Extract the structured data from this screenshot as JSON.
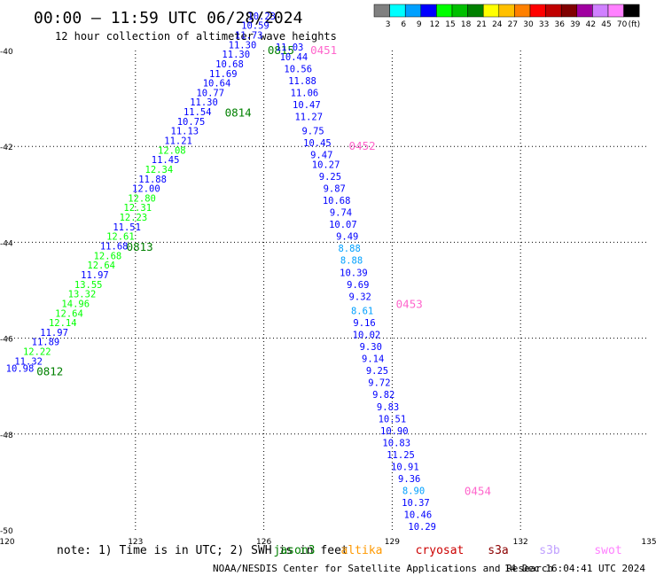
{
  "header": {
    "title": "00:00 – 11:59 UTC 06/28/2024",
    "subtitle": "12 hour collection of altimeter wave heights"
  },
  "legend": {
    "unit": "(ft)",
    "bins": [
      {
        "label": "3",
        "color": "#808080"
      },
      {
        "label": "6",
        "color": "#00ffff"
      },
      {
        "label": "9",
        "color": "#00a0ff"
      },
      {
        "label": "12",
        "color": "#0000ff"
      },
      {
        "label": "15",
        "color": "#00ff00"
      },
      {
        "label": "18",
        "color": "#00c000"
      },
      {
        "label": "21",
        "color": "#008000"
      },
      {
        "label": "24",
        "color": "#ffff00"
      },
      {
        "label": "27",
        "color": "#ffc000"
      },
      {
        "label": "30",
        "color": "#ff8000"
      },
      {
        "label": "33",
        "color": "#ff0000"
      },
      {
        "label": "36",
        "color": "#c00000"
      },
      {
        "label": "39",
        "color": "#800000"
      },
      {
        "label": "42",
        "color": "#a000a0"
      },
      {
        "label": "45",
        "color": "#d080ff"
      },
      {
        "label": "70",
        "color": "#ff80ff"
      },
      {
        "label": "",
        "color": "#000000"
      }
    ]
  },
  "chart_data": {
    "type": "scatter",
    "xlim": [
      120,
      135
    ],
    "ylim": [
      -50,
      -40
    ],
    "x_ticks": [
      "120",
      "123",
      "126",
      "129",
      "132",
      "135"
    ],
    "y_ticks": [
      "-40",
      "-42",
      "-44",
      "-46",
      "-48",
      "-50"
    ],
    "grid": true,
    "tracks": [
      {
        "pass_labels": [
          {
            "text": "0812",
            "x": 121.0,
            "y": -46.7
          },
          {
            "text": "0813",
            "x": 123.1,
            "y": -44.1
          },
          {
            "text": "0814",
            "x": 125.4,
            "y": -41.3
          },
          {
            "text": "0815",
            "x": 126.4,
            "y": -40.0
          }
        ],
        "points": [
          {
            "x": 120.3,
            "y": -46.7,
            "v": "10.98",
            "c": "#0000ff"
          },
          {
            "x": 120.5,
            "y": -46.55,
            "v": "11.32",
            "c": "#0000ff"
          },
          {
            "x": 120.7,
            "y": -46.35,
            "v": "12.22",
            "c": "#00ff00"
          },
          {
            "x": 120.9,
            "y": -46.15,
            "v": "11.89",
            "c": "#0000ff"
          },
          {
            "x": 121.1,
            "y": -45.95,
            "v": "11.97",
            "c": "#0000ff"
          },
          {
            "x": 121.3,
            "y": -45.75,
            "v": "12.14",
            "c": "#00ff00"
          },
          {
            "x": 121.45,
            "y": -45.55,
            "v": "12.64",
            "c": "#00ff00"
          },
          {
            "x": 121.6,
            "y": -45.35,
            "v": "14.96",
            "c": "#00ff00"
          },
          {
            "x": 121.75,
            "y": -45.15,
            "v": "13.32",
            "c": "#00ff00"
          },
          {
            "x": 121.9,
            "y": -44.95,
            "v": "13.55",
            "c": "#00ff00"
          },
          {
            "x": 122.05,
            "y": -44.75,
            "v": "11.97",
            "c": "#0000ff"
          },
          {
            "x": 122.2,
            "y": -44.55,
            "v": "12.64",
            "c": "#00ff00"
          },
          {
            "x": 122.35,
            "y": -44.35,
            "v": "12.68",
            "c": "#00ff00"
          },
          {
            "x": 122.5,
            "y": -44.15,
            "v": "11.68",
            "c": "#0000ff"
          },
          {
            "x": 122.65,
            "y": -43.95,
            "v": "12.61",
            "c": "#00ff00"
          },
          {
            "x": 122.8,
            "y": -43.75,
            "v": "11.51",
            "c": "#0000ff"
          },
          {
            "x": 122.95,
            "y": -43.55,
            "v": "12.23",
            "c": "#00ff00"
          },
          {
            "x": 123.05,
            "y": -43.35,
            "v": "12.31",
            "c": "#00ff00"
          },
          {
            "x": 123.15,
            "y": -43.15,
            "v": "12.80",
            "c": "#00ff00"
          },
          {
            "x": 123.25,
            "y": -42.95,
            "v": "12.00",
            "c": "#0000ff"
          },
          {
            "x": 123.4,
            "y": -42.75,
            "v": "11.88",
            "c": "#0000ff"
          },
          {
            "x": 123.55,
            "y": -42.55,
            "v": "12.34",
            "c": "#00ff00"
          },
          {
            "x": 123.7,
            "y": -42.35,
            "v": "11.45",
            "c": "#0000ff"
          },
          {
            "x": 123.85,
            "y": -42.15,
            "v": "12.08",
            "c": "#00ff00"
          },
          {
            "x": 124.0,
            "y": -41.95,
            "v": "11.21",
            "c": "#0000ff"
          },
          {
            "x": 124.15,
            "y": -41.75,
            "v": "11.13",
            "c": "#0000ff"
          },
          {
            "x": 124.3,
            "y": -41.55,
            "v": "10.75",
            "c": "#0000ff"
          },
          {
            "x": 124.45,
            "y": -41.35,
            "v": "11.54",
            "c": "#0000ff"
          },
          {
            "x": 124.6,
            "y": -41.15,
            "v": "11.30",
            "c": "#0000ff"
          },
          {
            "x": 124.75,
            "y": -40.95,
            "v": "10.77",
            "c": "#0000ff"
          },
          {
            "x": 124.9,
            "y": -40.75,
            "v": "10.64",
            "c": "#0000ff"
          },
          {
            "x": 125.05,
            "y": -40.55,
            "v": "11.69",
            "c": "#0000ff"
          },
          {
            "x": 125.2,
            "y": -40.35,
            "v": "10.68",
            "c": "#0000ff"
          },
          {
            "x": 125.35,
            "y": -40.15,
            "v": "11.30",
            "c": "#0000ff"
          },
          {
            "x": 125.5,
            "y": -39.95,
            "v": "11.30",
            "c": "#0000ff"
          },
          {
            "x": 125.65,
            "y": -39.75,
            "v": "11.73",
            "c": "#0000ff"
          },
          {
            "x": 125.8,
            "y": -39.55,
            "v": "10.59",
            "c": "#0000ff"
          },
          {
            "x": 125.95,
            "y": -39.35,
            "v": "10.23",
            "c": "#0000ff"
          }
        ]
      },
      {
        "pass_labels": [
          {
            "text": "0451",
            "x": 127.4,
            "y": -40.0
          },
          {
            "text": "0452",
            "x": 128.3,
            "y": -42.0
          },
          {
            "text": "0453",
            "x": 129.4,
            "y": -45.3
          },
          {
            "text": "0454",
            "x": 131.0,
            "y": -49.2
          }
        ],
        "points": [
          {
            "x": 126.6,
            "y": -40.0,
            "v": "11.03",
            "c": "#0000ff"
          },
          {
            "x": 126.7,
            "y": -40.2,
            "v": "10.44",
            "c": "#0000ff"
          },
          {
            "x": 126.8,
            "y": -40.45,
            "v": "10.56",
            "c": "#0000ff"
          },
          {
            "x": 126.9,
            "y": -40.7,
            "v": "11.88",
            "c": "#0000ff"
          },
          {
            "x": 126.95,
            "y": -40.95,
            "v": "11.06",
            "c": "#0000ff"
          },
          {
            "x": 127.0,
            "y": -41.2,
            "v": "10.47",
            "c": "#0000ff"
          },
          {
            "x": 127.05,
            "y": -41.45,
            "v": "11.27",
            "c": "#0000ff"
          },
          {
            "x": 127.15,
            "y": -41.75,
            "v": "9.75",
            "c": "#0000ff"
          },
          {
            "x": 127.25,
            "y": -42.0,
            "v": "10.45",
            "c": "#0000ff"
          },
          {
            "x": 127.35,
            "y": -42.25,
            "v": "9.47",
            "c": "#0000ff"
          },
          {
            "x": 127.45,
            "y": -42.45,
            "v": "10.27",
            "c": "#0000ff"
          },
          {
            "x": 127.55,
            "y": -42.7,
            "v": "9.25",
            "c": "#0000ff"
          },
          {
            "x": 127.65,
            "y": -42.95,
            "v": "9.87",
            "c": "#0000ff"
          },
          {
            "x": 127.7,
            "y": -43.2,
            "v": "10.68",
            "c": "#0000ff"
          },
          {
            "x": 127.8,
            "y": -43.45,
            "v": "9.74",
            "c": "#0000ff"
          },
          {
            "x": 127.85,
            "y": -43.7,
            "v": "10.07",
            "c": "#0000ff"
          },
          {
            "x": 127.95,
            "y": -43.95,
            "v": "9.49",
            "c": "#0000ff"
          },
          {
            "x": 128.0,
            "y": -44.2,
            "v": "8.88",
            "c": "#00a0ff"
          },
          {
            "x": 128.05,
            "y": -44.45,
            "v": "8.88",
            "c": "#00a0ff"
          },
          {
            "x": 128.1,
            "y": -44.7,
            "v": "10.39",
            "c": "#0000ff"
          },
          {
            "x": 128.2,
            "y": -44.95,
            "v": "9.69",
            "c": "#0000ff"
          },
          {
            "x": 128.25,
            "y": -45.2,
            "v": "9.32",
            "c": "#0000ff"
          },
          {
            "x": 128.3,
            "y": -45.5,
            "v": "8.61",
            "c": "#00a0ff"
          },
          {
            "x": 128.35,
            "y": -45.75,
            "v": "9.16",
            "c": "#0000ff"
          },
          {
            "x": 128.4,
            "y": -46.0,
            "v": "10.02",
            "c": "#0000ff"
          },
          {
            "x": 128.5,
            "y": -46.25,
            "v": "9.30",
            "c": "#0000ff"
          },
          {
            "x": 128.55,
            "y": -46.5,
            "v": "9.14",
            "c": "#0000ff"
          },
          {
            "x": 128.65,
            "y": -46.75,
            "v": "9.25",
            "c": "#0000ff"
          },
          {
            "x": 128.7,
            "y": -47.0,
            "v": "9.72",
            "c": "#0000ff"
          },
          {
            "x": 128.8,
            "y": -47.25,
            "v": "9.82",
            "c": "#0000ff"
          },
          {
            "x": 128.9,
            "y": -47.5,
            "v": "9.83",
            "c": "#0000ff"
          },
          {
            "x": 129.0,
            "y": -47.75,
            "v": "10.51",
            "c": "#0000ff"
          },
          {
            "x": 129.05,
            "y": -48.0,
            "v": "10.90",
            "c": "#0000ff"
          },
          {
            "x": 129.1,
            "y": -48.25,
            "v": "10.83",
            "c": "#0000ff"
          },
          {
            "x": 129.2,
            "y": -48.5,
            "v": "11.25",
            "c": "#0000ff"
          },
          {
            "x": 129.3,
            "y": -48.75,
            "v": "10.91",
            "c": "#0000ff"
          },
          {
            "x": 129.4,
            "y": -49.0,
            "v": "9.36",
            "c": "#0000ff"
          },
          {
            "x": 129.5,
            "y": -49.25,
            "v": "8.90",
            "c": "#00a0ff"
          },
          {
            "x": 129.55,
            "y": -49.5,
            "v": "10.37",
            "c": "#0000ff"
          },
          {
            "x": 129.6,
            "y": -49.75,
            "v": "10.46",
            "c": "#0000ff"
          },
          {
            "x": 129.7,
            "y": -50.0,
            "v": "10.29",
            "c": "#0000ff"
          }
        ]
      }
    ]
  },
  "footer": {
    "note": "note: 1) Time is in UTC; 2) SWH is in feet",
    "satellites": [
      {
        "name": "jason3",
        "color": "#008000"
      },
      {
        "name": "altika",
        "color": "#ff9900"
      },
      {
        "name": "cryosat",
        "color": "#cc0000"
      },
      {
        "name": "s3a",
        "color": "#8b0000"
      },
      {
        "name": "s3b",
        "color": "#c0a0ff"
      },
      {
        "name": "swot",
        "color": "#ff80ff"
      }
    ],
    "credit": "NOAA/NESDIS Center for Satellite Applications and Research",
    "timestamp": "14 Dec 16:04:41 UTC 2024"
  }
}
